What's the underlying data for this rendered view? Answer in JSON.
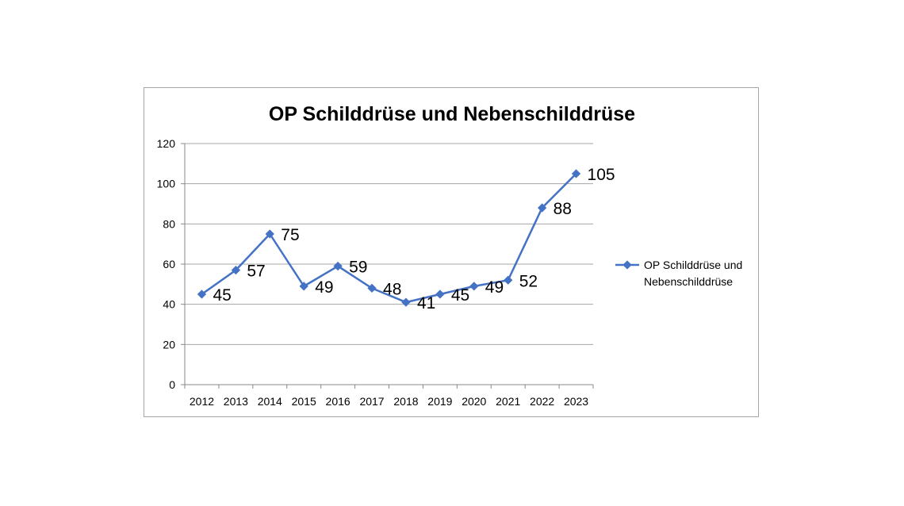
{
  "chart_data": {
    "type": "line",
    "title": "OP Schilddrüse und Nebenschilddrüse",
    "xlabel": "",
    "ylabel": "",
    "categories": [
      "2012",
      "2013",
      "2014",
      "2015",
      "2016",
      "2017",
      "2018",
      "2019",
      "2020",
      "2021",
      "2022",
      "2023"
    ],
    "series": [
      {
        "name": "OP Schilddrüse und Nebenschilddrüse",
        "legend_lines": [
          "OP Schilddrüse und",
          "Nebenschilddrüse"
        ],
        "values": [
          45,
          57,
          75,
          49,
          59,
          48,
          41,
          45,
          49,
          52,
          88,
          105
        ],
        "color": "#4472c4"
      }
    ],
    "ylim": [
      0,
      120
    ],
    "yticks": [
      0,
      20,
      40,
      60,
      80,
      100,
      120
    ],
    "grid": true,
    "legend": "right",
    "data_labels": true
  }
}
